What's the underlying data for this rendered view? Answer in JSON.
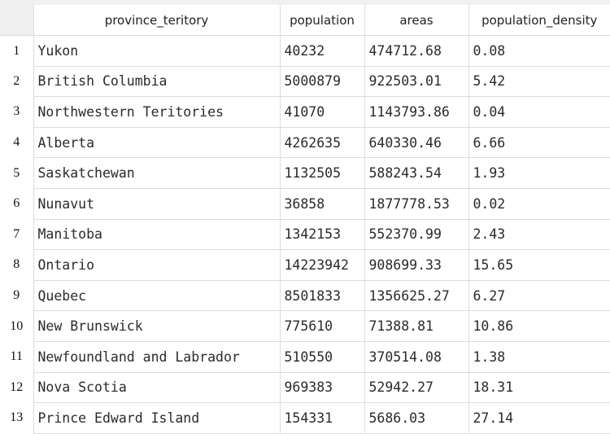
{
  "table": {
    "columns": [
      "province_teritory",
      "population",
      "areas",
      "population_density"
    ],
    "rows": [
      {
        "index": "1",
        "province_teritory": "Yukon",
        "population": "40232",
        "areas": "474712.68",
        "population_density": "0.08"
      },
      {
        "index": "2",
        "province_teritory": "British Columbia",
        "population": "5000879",
        "areas": "922503.01",
        "population_density": "5.42"
      },
      {
        "index": "3",
        "province_teritory": "Northwestern Teritories",
        "population": "41070",
        "areas": "1143793.86",
        "population_density": "0.04"
      },
      {
        "index": "4",
        "province_teritory": "Alberta",
        "population": "4262635",
        "areas": "640330.46",
        "population_density": "6.66"
      },
      {
        "index": "5",
        "province_teritory": "Saskatchewan",
        "population": "1132505",
        "areas": "588243.54",
        "population_density": "1.93"
      },
      {
        "index": "6",
        "province_teritory": "Nunavut",
        "population": "36858",
        "areas": "1877778.53",
        "population_density": "0.02"
      },
      {
        "index": "7",
        "province_teritory": "Manitoba",
        "population": "1342153",
        "areas": "552370.99",
        "population_density": "2.43"
      },
      {
        "index": "8",
        "province_teritory": "Ontario",
        "population": "14223942",
        "areas": "908699.33",
        "population_density": "15.65"
      },
      {
        "index": "9",
        "province_teritory": "Quebec",
        "population": "8501833",
        "areas": "1356625.27",
        "population_density": "6.27"
      },
      {
        "index": "10",
        "province_teritory": "New Brunswick",
        "population": "775610",
        "areas": "71388.81",
        "population_density": "10.86"
      },
      {
        "index": "11",
        "province_teritory": "Newfoundland and Labrador",
        "population": "510550",
        "areas": "370514.08",
        "population_density": "1.38"
      },
      {
        "index": "12",
        "province_teritory": "Nova Scotia",
        "population": "969383",
        "areas": "52942.27",
        "population_density": "18.31"
      },
      {
        "index": "13",
        "province_teritory": "Prince Edward Island",
        "population": "154331",
        "areas": "5686.03",
        "population_density": "27.14"
      }
    ]
  }
}
